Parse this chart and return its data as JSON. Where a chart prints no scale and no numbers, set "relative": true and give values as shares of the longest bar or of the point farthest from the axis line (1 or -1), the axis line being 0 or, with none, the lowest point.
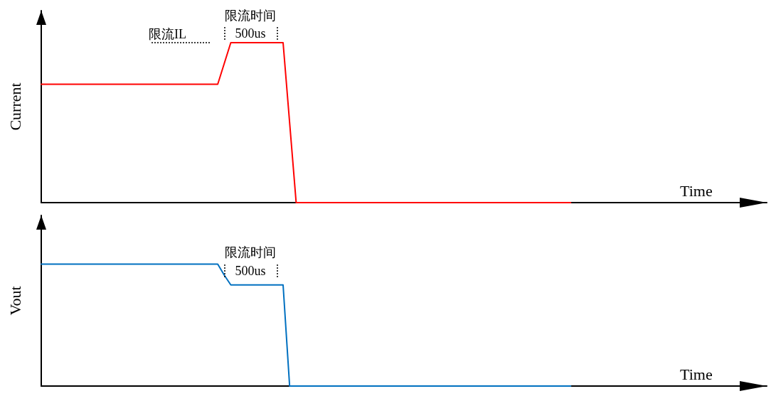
{
  "chart_data": [
    {
      "type": "line",
      "relative": true,
      "xlabel": "Time",
      "ylabel": "Current",
      "annotations": [
        "限流时间",
        "500us",
        "限流IL"
      ],
      "categories": [
        null,
        null,
        null,
        null,
        null,
        null,
        null,
        null,
        null,
        null,
        null,
        null,
        null,
        null,
        null,
        null,
        null,
        null,
        null,
        null,
        null,
        null,
        null,
        null,
        null,
        null,
        null,
        null,
        null,
        null,
        null,
        null,
        null,
        null,
        null,
        null,
        null,
        null,
        null,
        null,
        null,
        null,
        null,
        null,
        null,
        null,
        null,
        null,
        null,
        null,
        null,
        null,
        null,
        null,
        null,
        null,
        null,
        null,
        null,
        null,
        null,
        null,
        null,
        null,
        null,
        null,
        null,
        null,
        null,
        null,
        null,
        null,
        null,
        null,
        null,
        null,
        null,
        null,
        null,
        null,
        null,
        null,
        null,
        null,
        null,
        null,
        null,
        null,
        null,
        null,
        null,
        null,
        null,
        null,
        null,
        null,
        null,
        null,
        null,
        null,
        null,
        null,
        null,
        null,
        null,
        null,
        null,
        null,
        null,
        null,
        null,
        null
      ],
      "series": [
        {
          "color": "#ff0000",
          "values": [
            0.74,
            0.74,
            0.74,
            0.74,
            0.74,
            0.74,
            0.74,
            0.74,
            0.74,
            0.74,
            0.74,
            0.74,
            0.74,
            0.74,
            0.74,
            0.74,
            0.74,
            0.74,
            0.74,
            0.74,
            0.74,
            0.74,
            0.74,
            0.74,
            0.74,
            0.74,
            0.74,
            0.74,
            0.87,
            1,
            1,
            1,
            1,
            1,
            1,
            1,
            1,
            1,
            0.5,
            0,
            0,
            0,
            0,
            0,
            0,
            0,
            0,
            0,
            0,
            0,
            0,
            0,
            0,
            0,
            0,
            0,
            0,
            0,
            0,
            0,
            0,
            0,
            0,
            0,
            0,
            0,
            0,
            0,
            0,
            0,
            0,
            0,
            0,
            0,
            0,
            0,
            0,
            0,
            0,
            0,
            0,
            0,
            null,
            null,
            null,
            null,
            null,
            null,
            null,
            null,
            null,
            null,
            null,
            null,
            null,
            null,
            null,
            null,
            null,
            null,
            null,
            null,
            null,
            null,
            null,
            null,
            null,
            null,
            null,
            null,
            null,
            null
          ]
        }
      ]
    },
    {
      "type": "line",
      "relative": true,
      "xlabel": "Time",
      "ylabel": "Vout",
      "annotations": [
        "限流时间",
        "500us"
      ],
      "categories": [
        null,
        null,
        null,
        null,
        null,
        null,
        null,
        null,
        null,
        null,
        null,
        null,
        null,
        null,
        null,
        null,
        null,
        null,
        null,
        null,
        null,
        null,
        null,
        null,
        null,
        null,
        null,
        null,
        null,
        null,
        null,
        null,
        null,
        null,
        null,
        null,
        null,
        null,
        null,
        null,
        null,
        null,
        null,
        null,
        null,
        null,
        null,
        null,
        null,
        null,
        null,
        null,
        null,
        null,
        null,
        null,
        null,
        null,
        null,
        null,
        null,
        null,
        null,
        null,
        null,
        null,
        null,
        null,
        null,
        null,
        null,
        null,
        null,
        null,
        null,
        null,
        null,
        null,
        null,
        null,
        null,
        null,
        null,
        null,
        null,
        null,
        null,
        null,
        null,
        null,
        null,
        null,
        null,
        null,
        null,
        null,
        null,
        null,
        null,
        null,
        null,
        null,
        null,
        null,
        null,
        null,
        null,
        null,
        null,
        null,
        null,
        null
      ],
      "series": [
        {
          "color": "#0070c0",
          "values": [
            1,
            1,
            1,
            1,
            1,
            1,
            1,
            1,
            1,
            1,
            1,
            1,
            1,
            1,
            1,
            1,
            1,
            1,
            1,
            1,
            1,
            1,
            1,
            1,
            1,
            1,
            1,
            1,
            0.91,
            0.83,
            0.83,
            0.83,
            0.83,
            0.83,
            0.83,
            0.83,
            0.83,
            0.83,
            0,
            0,
            0,
            0,
            0,
            0,
            0,
            0,
            0,
            0,
            0,
            0,
            0,
            0,
            0,
            0,
            0,
            0,
            0,
            0,
            0,
            0,
            0,
            0,
            0,
            0,
            0,
            0,
            0,
            0,
            0,
            0,
            0,
            0,
            0,
            0,
            0,
            0,
            0,
            0,
            0,
            0,
            0,
            0,
            null,
            null,
            null,
            null,
            null,
            null,
            null,
            null,
            null,
            null,
            null,
            null,
            null,
            null,
            null,
            null,
            null,
            null,
            null,
            null,
            null,
            null,
            null,
            null,
            null,
            null,
            null,
            null,
            null,
            null
          ]
        }
      ]
    }
  ]
}
